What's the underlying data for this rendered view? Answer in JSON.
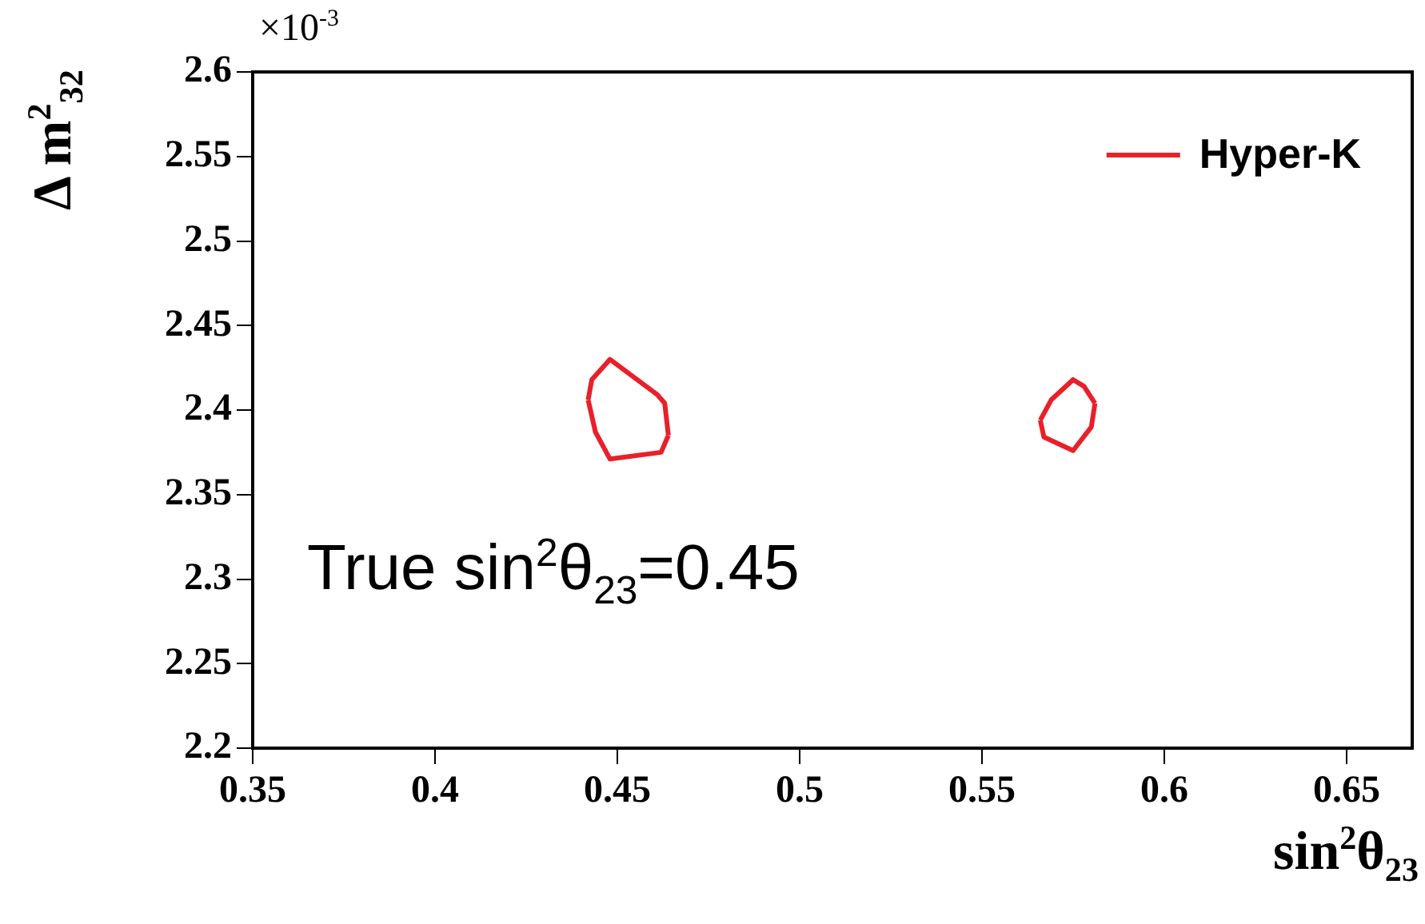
{
  "chart_data": {
    "type": "line",
    "xlabel": "sin$^{2}$θ$_{23}$",
    "ylabel": "Δ m$^{2}$$_{32}$",
    "xlim": [
      0.35,
      0.668
    ],
    "xticks": [
      0.35,
      0.4,
      0.45,
      0.5,
      0.55,
      0.6,
      0.65
    ],
    "ylim": [
      2.2,
      2.6
    ],
    "yticks": [
      2.2,
      2.25,
      2.3,
      2.35,
      2.4,
      2.45,
      2.5,
      2.55,
      2.6
    ],
    "series": [
      {
        "name": "Hyper-K",
        "color": "#e8202a",
        "x": [
          0.442,
          0.443,
          0.448,
          0.461,
          0.463,
          0.464,
          null,
          0.442,
          0.444,
          0.448,
          0.462,
          0.464
        ],
        "values": [
          2.406,
          2.418,
          2.43,
          2.409,
          2.404,
          2.385,
          null,
          2.406,
          2.387,
          2.371,
          2.375,
          2.385
        ]
      },
      {
        "color": "#e8202a",
        "x": [
          0.566,
          0.569,
          0.575,
          0.578,
          0.581,
          null,
          0.566,
          0.567,
          0.575,
          0.58,
          0.581
        ],
        "values": [
          2.394,
          2.406,
          2.418,
          2.414,
          2.404,
          null,
          2.394,
          2.384,
          2.376,
          2.39,
          2.404
        ]
      }
    ],
    "annotations": [
      "×10$^{-3}$",
      "True sin$^{2}$θ$_{23}$=0.45"
    ],
    "legend": "top right",
    "grid": false,
    "marker": "none",
    "line_style": "solid"
  }
}
